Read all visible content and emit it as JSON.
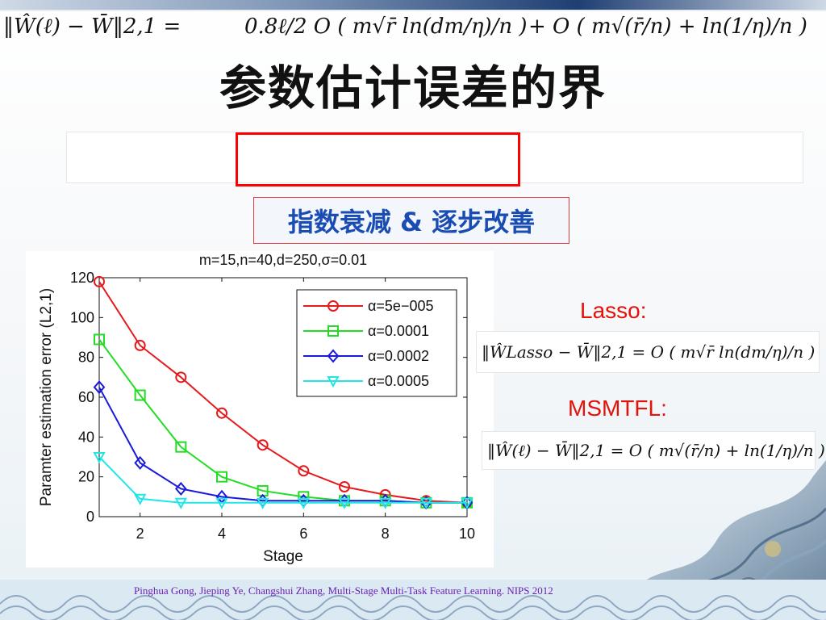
{
  "slide": {
    "title": "参数估计误差的界",
    "main_formula": {
      "left": "‖Ŵ(ℓ) − W̄‖2,1 =",
      "highlighted": "0.8ℓ/2 O ( m√r̄ ln(dm/η)/n )",
      "right": "+ O ( m√(r̄/n) + ln(1/η)/n )"
    },
    "callout": "指数衰减 & 逐步改善",
    "lasso_label": "Lasso:",
    "lasso_formula": "‖ŴLasso − W̄‖2,1 = O ( m√r̄ ln(dm/η)/n )",
    "msmtfl_label": "MSMTFL:",
    "msmtfl_formula": "‖Ŵ(ℓ) − W̄‖2,1 = O ( m√(r̄/n) + ln(1/η)/n )",
    "footer": "Pinghua Gong, Jieping Ye, Changshui Zhang, Multi-Stage Multi-Task Feature Learning. NIPS 2012"
  },
  "chart_data": {
    "type": "line",
    "title": "m=15,n=40,d=250,σ=0.01",
    "xlabel": "Stage",
    "ylabel": "Paramter estimation error (L2,1)",
    "xlim": [
      1,
      10
    ],
    "ylim": [
      0,
      120
    ],
    "xticks": [
      2,
      4,
      6,
      8,
      10
    ],
    "yticks": [
      0,
      20,
      40,
      60,
      80,
      100,
      120
    ],
    "legend_position": "top-right",
    "grid": false,
    "x": [
      1,
      2,
      3,
      4,
      5,
      6,
      7,
      8,
      9,
      10
    ],
    "series": [
      {
        "name": "α=5e−005",
        "color": "#e41a1c",
        "marker": "circle",
        "values": [
          118,
          86,
          70,
          52,
          36,
          23,
          15,
          11,
          8,
          7
        ]
      },
      {
        "name": "α=0.0001",
        "color": "#22dd22",
        "marker": "square",
        "values": [
          89,
          61,
          35,
          20,
          13,
          10,
          8,
          8,
          7,
          7
        ]
      },
      {
        "name": "α=0.0002",
        "color": "#1a1adc",
        "marker": "diamond",
        "values": [
          65,
          27,
          14,
          10,
          8,
          8,
          8,
          8,
          7,
          7
        ]
      },
      {
        "name": "α=0.0005",
        "color": "#22e6e6",
        "marker": "triangle-down",
        "values": [
          30,
          9,
          7,
          7,
          7,
          7,
          7,
          7,
          7,
          7
        ]
      }
    ]
  }
}
